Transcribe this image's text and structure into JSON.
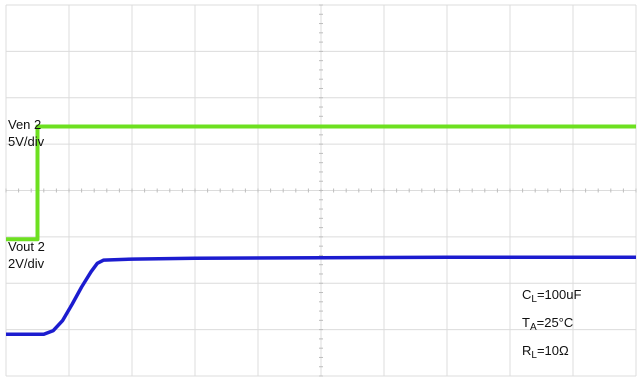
{
  "chart_data": {
    "type": "line",
    "title": "",
    "xlabel": "",
    "ylabel": "",
    "grid": true,
    "x_divisions": 10,
    "y_divisions": 8,
    "series": [
      {
        "name": "Ven 2",
        "scale": "5V/div",
        "color": "#6de020",
        "x_div": [
          0,
          0.5,
          0.5,
          10
        ],
        "y_div": [
          2.95,
          2.95,
          5.38,
          5.38
        ]
      },
      {
        "name": "Vout 2",
        "scale": "2V/div",
        "color": "#1c1ccf",
        "x_div": [
          0,
          0.6,
          0.75,
          0.9,
          1.05,
          1.2,
          1.35,
          1.45,
          1.55,
          2,
          3,
          5,
          7,
          10
        ],
        "y_div": [
          0.9,
          0.9,
          0.98,
          1.2,
          1.55,
          1.92,
          2.25,
          2.43,
          2.5,
          2.52,
          2.54,
          2.55,
          2.56,
          2.56
        ]
      }
    ],
    "annotations": [
      {
        "label": "C",
        "sub": "L",
        "value": "=100uF"
      },
      {
        "label": "T",
        "sub": "A",
        "value": "=25°C"
      },
      {
        "label": "R",
        "sub": "L",
        "value": "=10Ω"
      }
    ]
  }
}
